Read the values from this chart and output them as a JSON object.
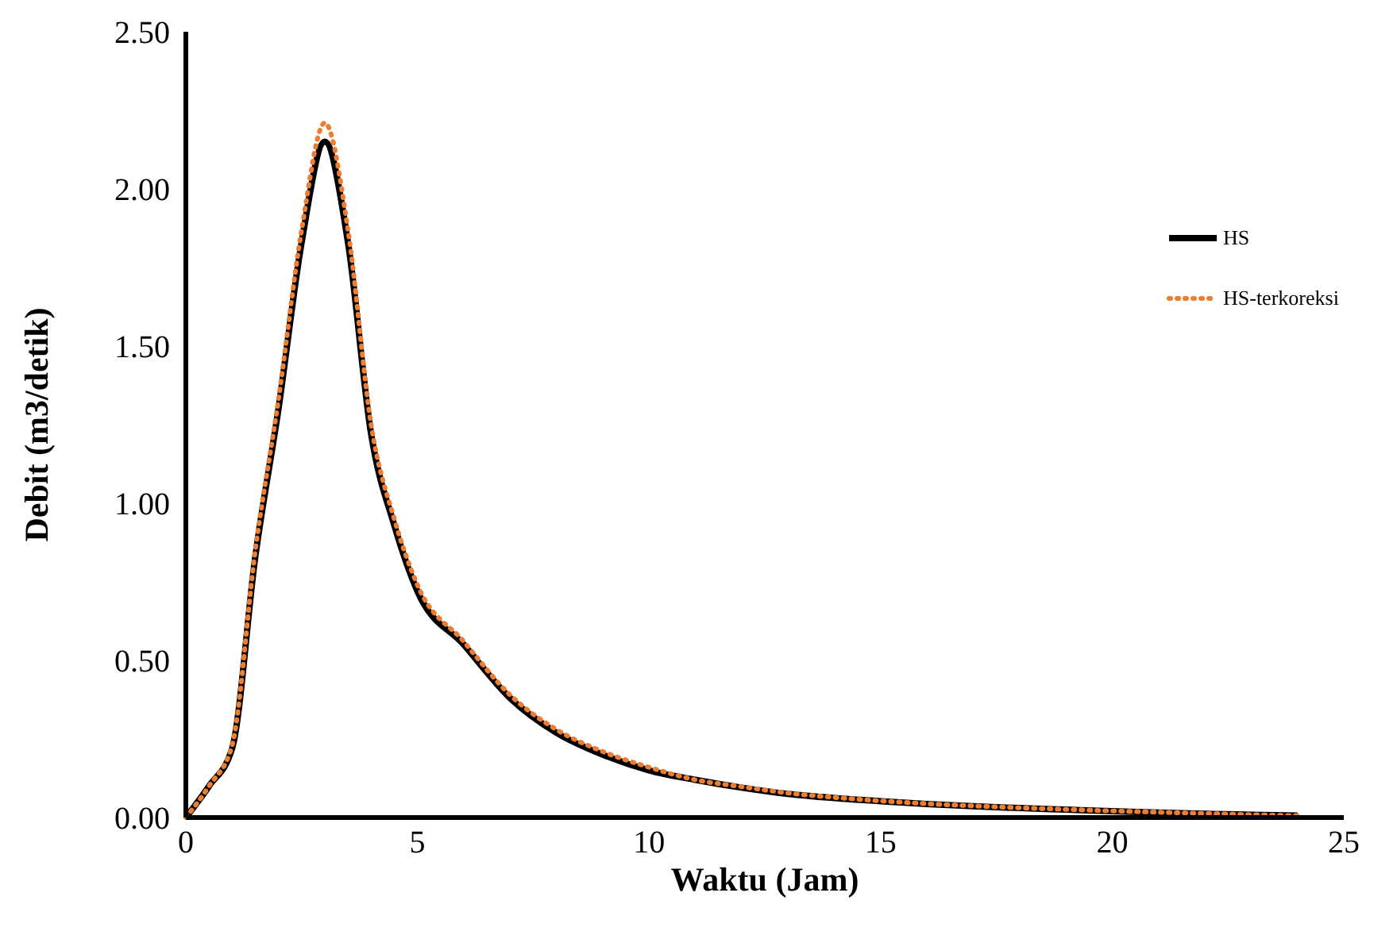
{
  "chart_data": {
    "type": "line",
    "xlabel": "Waktu (Jam)",
    "ylabel": "Debit (m3/detik)",
    "x": [
      0,
      0.5,
      1,
      1.5,
      2,
      2.5,
      3,
      3.5,
      4,
      4.5,
      5,
      6,
      7,
      8,
      9,
      10,
      11,
      12,
      13,
      14,
      15,
      16,
      17,
      18,
      19,
      20,
      21,
      22,
      23,
      24
    ],
    "series": [
      {
        "name": "HS",
        "color": "#000000",
        "line_style": "solid",
        "values": [
          0,
          0.1,
          0.22,
          0.83,
          1.3,
          1.83,
          2.15,
          1.83,
          1.22,
          0.93,
          0.72,
          0.55,
          0.38,
          0.27,
          0.2,
          0.15,
          0.12,
          0.095,
          0.075,
          0.062,
          0.052,
          0.043,
          0.036,
          0.03,
          0.025,
          0.02,
          0.016,
          0.012,
          0.009,
          0.006
        ]
      },
      {
        "name": "HS-terkoreksi",
        "color": "#ed7d31",
        "line_style": "dotted",
        "values": [
          0,
          0.1,
          0.23,
          0.85,
          1.33,
          1.87,
          2.21,
          1.87,
          1.25,
          0.95,
          0.74,
          0.56,
          0.39,
          0.28,
          0.21,
          0.16,
          0.12,
          0.098,
          0.078,
          0.064,
          0.053,
          0.044,
          0.037,
          0.031,
          0.026,
          0.021,
          0.017,
          0.013,
          0.009,
          0.006
        ]
      }
    ],
    "xlim": [
      0,
      25
    ],
    "xticks": [
      0,
      5,
      10,
      15,
      20,
      25
    ],
    "ylim": [
      0,
      2.5
    ],
    "yticks": [
      {
        "value": 0,
        "label": "0.00"
      },
      {
        "value": 0.5,
        "label": "0.50"
      },
      {
        "value": 1,
        "label": "1.00"
      },
      {
        "value": 1.5,
        "label": "1.50"
      },
      {
        "value": 2,
        "label": "2.00"
      },
      {
        "value": 2.5,
        "label": "2.50"
      }
    ],
    "grid": false,
    "legend": "right",
    "marker": "none"
  }
}
